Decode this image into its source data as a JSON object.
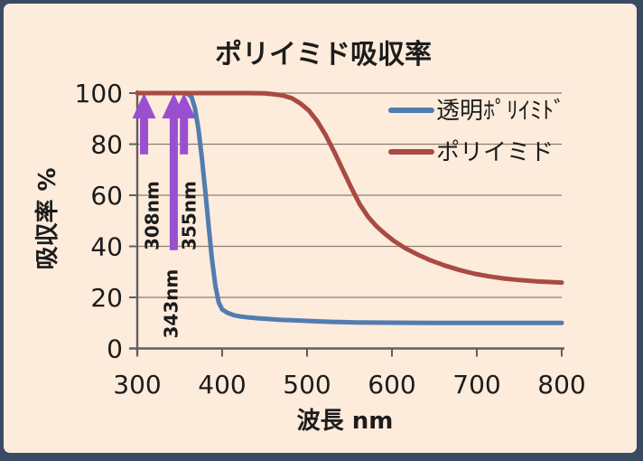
{
  "panel": {
    "background": "#fdebdb",
    "border_color": "#3b4a63"
  },
  "chart_data": {
    "type": "line",
    "title": "ポリイミド吸収率",
    "xlabel": "波長 nm",
    "ylabel": "吸収率 %",
    "xlim": [
      300,
      800
    ],
    "ylim": [
      0,
      100
    ],
    "xticks": [
      "300",
      "400",
      "500",
      "600",
      "700",
      "800"
    ],
    "yticks": [
      "0",
      "20",
      "40",
      "60",
      "80",
      "100"
    ],
    "grid": "horizontal",
    "legend_position": "inside-top-right",
    "axis_color": "#5f5f5f",
    "grid_color": "#8a7f72",
    "text_color": "#1c1c1c",
    "series": [
      {
        "name": "透明ﾎﾟﾘｲﾐﾄﾞ",
        "color": "#527cb0",
        "points": [
          [
            300,
            100
          ],
          [
            345,
            100
          ],
          [
            356,
            100
          ],
          [
            360,
            99.6
          ],
          [
            364,
            98.4
          ],
          [
            368,
            94
          ],
          [
            372,
            86
          ],
          [
            376,
            75
          ],
          [
            380,
            62
          ],
          [
            384,
            48
          ],
          [
            388,
            35
          ],
          [
            392,
            24.5
          ],
          [
            396,
            18
          ],
          [
            400,
            15.3
          ],
          [
            406,
            14
          ],
          [
            414,
            13
          ],
          [
            422,
            12.5
          ],
          [
            432,
            12.1
          ],
          [
            444,
            11.8
          ],
          [
            456,
            11.5
          ],
          [
            470,
            11.2
          ],
          [
            485,
            11
          ],
          [
            505,
            10.7
          ],
          [
            530,
            10.4
          ],
          [
            560,
            10.2
          ],
          [
            600,
            10.1
          ],
          [
            650,
            10
          ],
          [
            700,
            10
          ],
          [
            750,
            10
          ],
          [
            800,
            10
          ]
        ]
      },
      {
        "name": "ポリイミド",
        "color": "#a94a44",
        "points": [
          [
            300,
            100
          ],
          [
            380,
            100
          ],
          [
            430,
            100
          ],
          [
            450,
            99.9
          ],
          [
            462,
            99.5
          ],
          [
            472,
            99
          ],
          [
            482,
            98
          ],
          [
            492,
            96
          ],
          [
            502,
            93.2
          ],
          [
            512,
            89
          ],
          [
            522,
            83.5
          ],
          [
            532,
            77
          ],
          [
            542,
            70
          ],
          [
            552,
            63
          ],
          [
            562,
            56.5
          ],
          [
            572,
            51.5
          ],
          [
            582,
            47.8
          ],
          [
            592,
            44.8
          ],
          [
            602,
            42.2
          ],
          [
            615,
            39.4
          ],
          [
            630,
            36.8
          ],
          [
            645,
            34.6
          ],
          [
            662,
            32.5
          ],
          [
            680,
            30.7
          ],
          [
            698,
            29.2
          ],
          [
            715,
            28.2
          ],
          [
            732,
            27.4
          ],
          [
            750,
            26.8
          ],
          [
            770,
            26.3
          ],
          [
            800,
            25.8
          ]
        ]
      }
    ],
    "annotations": {
      "arrow_color": "#9a4fd0",
      "arrows": [
        {
          "label": "308nm",
          "wavelength_nm": 308,
          "tip_pct": 100,
          "tail_pct": 76,
          "label_dx": 9,
          "label_y_pct": 52
        },
        {
          "label": "343nm",
          "wavelength_nm": 343,
          "tip_pct": 100,
          "tail_pct": 38.5,
          "label_dx": -3,
          "label_y_pct": 17.5
        },
        {
          "label": "355nm",
          "wavelength_nm": 355,
          "tip_pct": 100,
          "tail_pct": 76,
          "label_dx": 6,
          "label_y_pct": 52
        }
      ]
    }
  }
}
